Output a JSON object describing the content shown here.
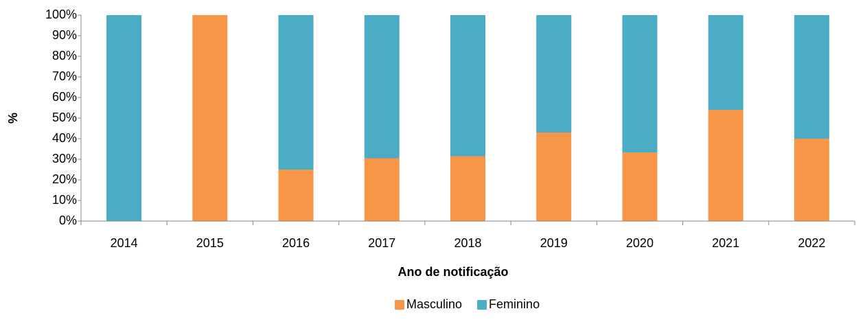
{
  "chart_data": {
    "type": "stacked_bar",
    "x_label": "Ano de notificação",
    "y_label": "%",
    "categories": [
      "2014",
      "2015",
      "2016",
      "2017",
      "2018",
      "2019",
      "2020",
      "2021",
      "2022"
    ],
    "series": [
      {
        "name": "Masculino",
        "color": "#f79646",
        "values": [
          0,
          100,
          25,
          30.5,
          31.5,
          43,
          33.3,
          54,
          40
        ]
      },
      {
        "name": "Feminino",
        "color": "#4bacc6",
        "values": [
          100,
          0,
          75,
          69.5,
          68.5,
          57,
          66.7,
          46,
          60
        ]
      }
    ],
    "ylim": [
      0,
      100
    ],
    "yticks": [
      {
        "value": 0,
        "label": "0%"
      },
      {
        "value": 10,
        "label": "10%"
      },
      {
        "value": 20,
        "label": "20%"
      },
      {
        "value": 30,
        "label": "30%"
      },
      {
        "value": 40,
        "label": "40%"
      },
      {
        "value": 50,
        "label": "50%"
      },
      {
        "value": 60,
        "label": "60%"
      },
      {
        "value": 70,
        "label": "70%"
      },
      {
        "value": 80,
        "label": "80%"
      },
      {
        "value": 90,
        "label": "90%"
      },
      {
        "value": 100,
        "label": "100%"
      }
    ],
    "grid": false,
    "legend": "bottom"
  }
}
